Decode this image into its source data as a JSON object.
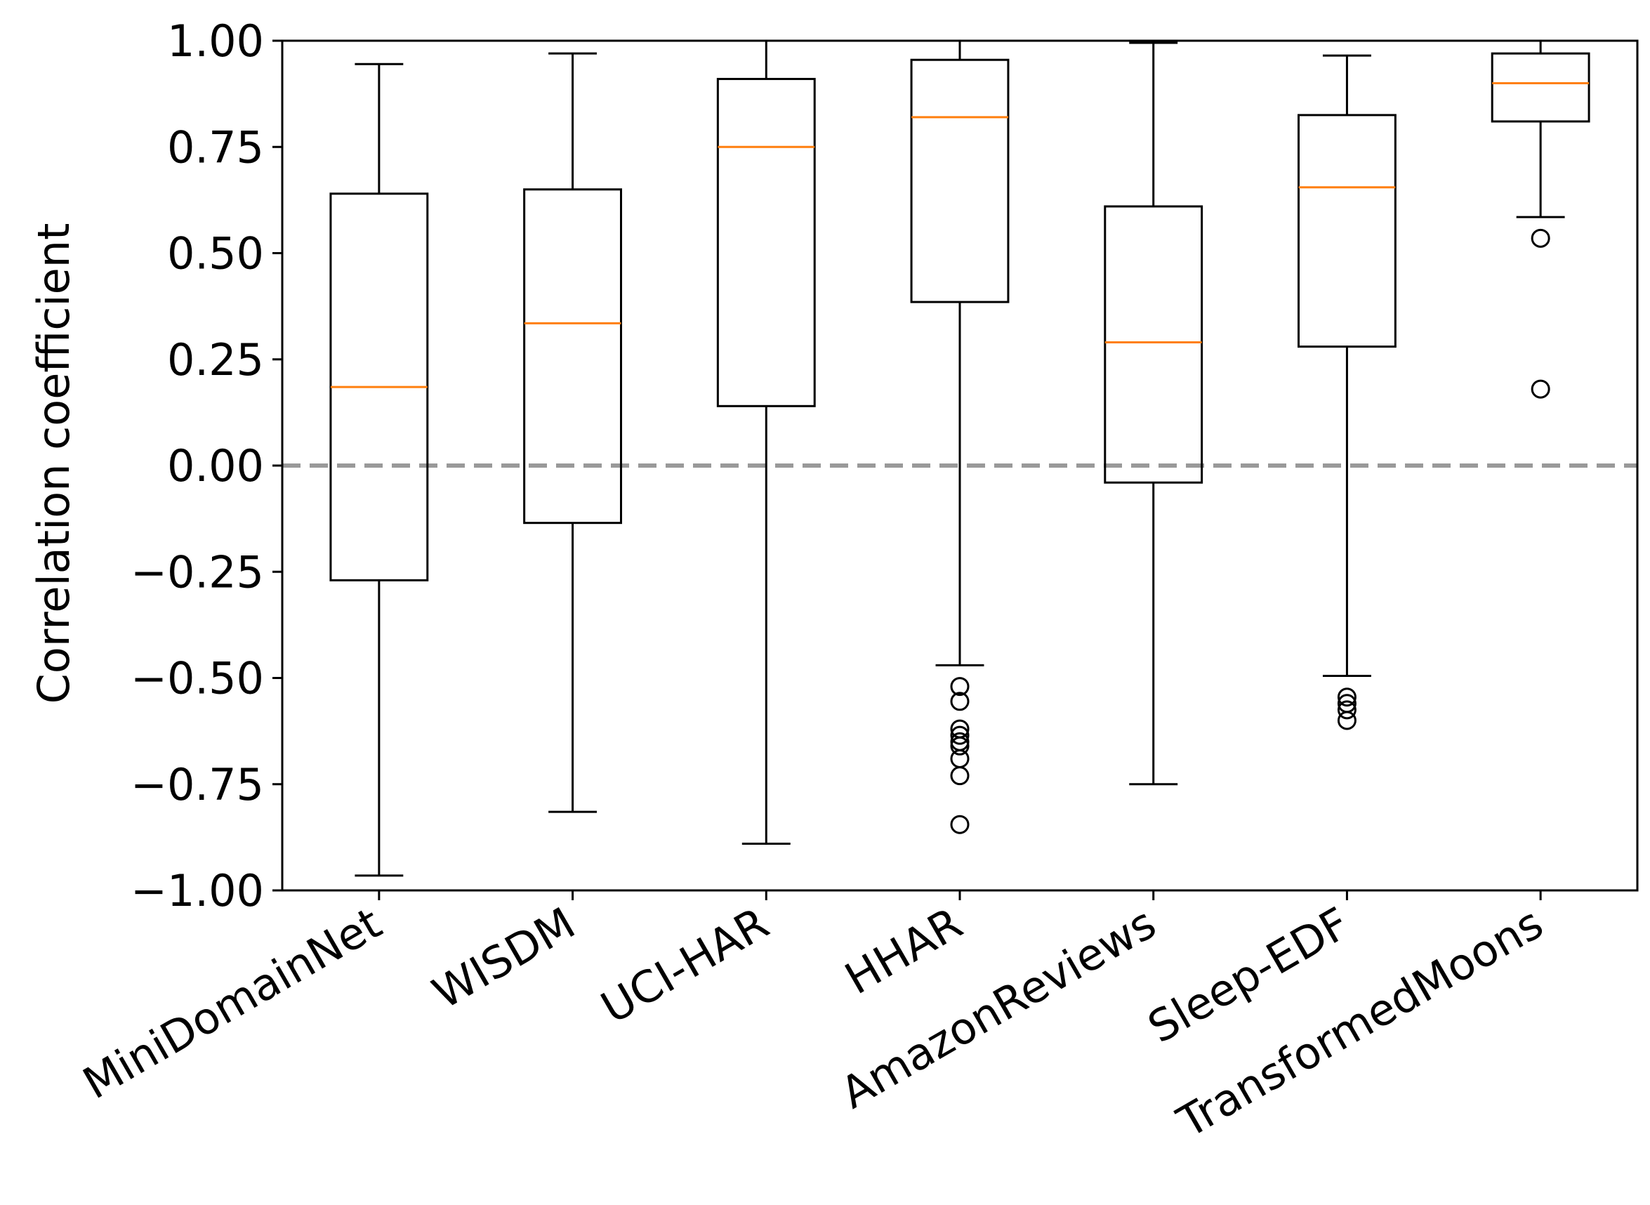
{
  "chart_data": {
    "type": "box",
    "ylabel": "Correlation coefficient",
    "xlabel": "",
    "ylim": [
      -1.0,
      1.0
    ],
    "yticks": [
      1.0,
      0.75,
      0.5,
      0.25,
      0.0,
      -0.25,
      -0.5,
      -0.75,
      -1.0
    ],
    "ytick_labels": [
      "1.00",
      "0.75",
      "0.50",
      "0.25",
      "0.00",
      "−0.25",
      "−0.50",
      "−0.75",
      "−1.00"
    ],
    "reference_line": {
      "y": 0.0,
      "style": "dashed",
      "color": "#999999"
    },
    "colors": {
      "box": "#000000",
      "median": "#ff7f0e"
    },
    "categories": [
      "MiniDomainNet",
      "WISDM",
      "UCI-HAR",
      "HHAR",
      "AmazonReviews",
      "Sleep-EDF",
      "TransformedMoons"
    ],
    "boxes": [
      {
        "whisker_low": -0.965,
        "q1": -0.27,
        "median": 0.185,
        "q3": 0.64,
        "whisker_high": 0.945,
        "outliers": []
      },
      {
        "whisker_low": -0.815,
        "q1": -0.135,
        "median": 0.335,
        "q3": 0.65,
        "whisker_high": 0.97,
        "outliers": []
      },
      {
        "whisker_low": -0.89,
        "q1": 0.14,
        "median": 0.75,
        "q3": 0.91,
        "whisker_high": 1.0,
        "outliers": []
      },
      {
        "whisker_low": -0.47,
        "q1": 0.385,
        "median": 0.82,
        "q3": 0.955,
        "whisker_high": 1.0,
        "outliers": [
          -0.52,
          -0.555,
          -0.62,
          -0.635,
          -0.65,
          -0.66,
          -0.69,
          -0.73,
          -0.845
        ]
      },
      {
        "whisker_low": -0.75,
        "q1": -0.04,
        "median": 0.29,
        "q3": 0.61,
        "whisker_high": 0.995,
        "outliers": []
      },
      {
        "whisker_low": -0.495,
        "q1": 0.28,
        "median": 0.655,
        "q3": 0.825,
        "whisker_high": 0.965,
        "outliers": [
          -0.545,
          -0.56,
          -0.575,
          -0.6
        ]
      },
      {
        "whisker_low": 0.585,
        "q1": 0.81,
        "median": 0.9,
        "q3": 0.97,
        "whisker_high": 1.0,
        "outliers": [
          0.535,
          0.18
        ]
      }
    ]
  }
}
